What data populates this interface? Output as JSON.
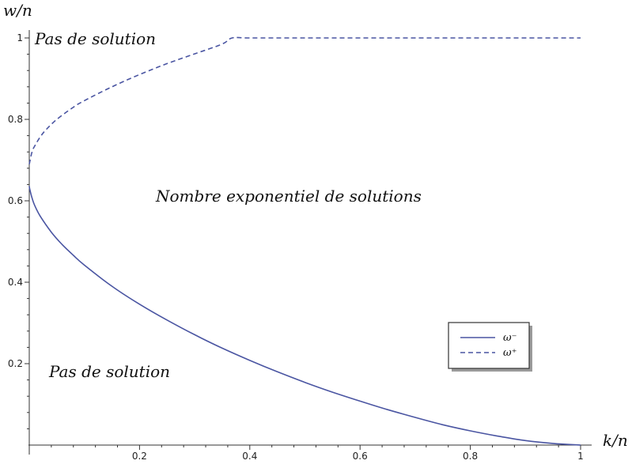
{
  "chart_data": {
    "type": "line",
    "xlabel": "k/n",
    "ylabel": "w/n",
    "xlim": [
      0,
      1
    ],
    "ylim": [
      0,
      1
    ],
    "x_ticks": [
      "0.2",
      "0.4",
      "0.6",
      "0.8",
      "1"
    ],
    "y_ticks": [
      "0.2",
      "0.4",
      "0.6",
      "0.8",
      "1"
    ],
    "grid": false,
    "legend_position": "right",
    "colors": {
      "series": "#4a55a2",
      "axis": "#333333"
    },
    "series": [
      {
        "name": "ω⁻",
        "style": "solid",
        "x": [
          0,
          0.001,
          0.005,
          0.01,
          0.02,
          0.04,
          0.06,
          0.08,
          0.1,
          0.15,
          0.2,
          0.25,
          0.3,
          0.35,
          0.4,
          0.45,
          0.5,
          0.55,
          0.6,
          0.65,
          0.7,
          0.75,
          0.8,
          0.85,
          0.9,
          0.95,
          1
        ],
        "y": [
          0.636,
          0.628,
          0.607,
          0.588,
          0.562,
          0.523,
          0.492,
          0.466,
          0.442,
          0.39,
          0.346,
          0.307,
          0.271,
          0.238,
          0.208,
          0.18,
          0.154,
          0.13,
          0.108,
          0.087,
          0.068,
          0.05,
          0.035,
          0.022,
          0.011,
          0.004,
          0
        ]
      },
      {
        "name": "ω⁺",
        "style": "dashed",
        "x": [
          0,
          0.005,
          0.01,
          0.02,
          0.03,
          0.05,
          0.08,
          0.1,
          0.15,
          0.2,
          0.25,
          0.3,
          0.35,
          0.368,
          0.4,
          0.5,
          0.6,
          0.7,
          0.8,
          0.9,
          1
        ],
        "y": [
          0.69,
          0.72,
          0.735,
          0.757,
          0.774,
          0.8,
          0.83,
          0.846,
          0.88,
          0.91,
          0.937,
          0.961,
          0.985,
          1,
          1,
          1,
          1,
          1,
          1,
          1,
          1
        ]
      }
    ],
    "annotations": [
      {
        "id": "top",
        "text": "Pas de solution"
      },
      {
        "id": "middle",
        "text": "Nombre exponentiel de solutions"
      },
      {
        "id": "bottom",
        "text": "Pas de solution"
      }
    ]
  }
}
